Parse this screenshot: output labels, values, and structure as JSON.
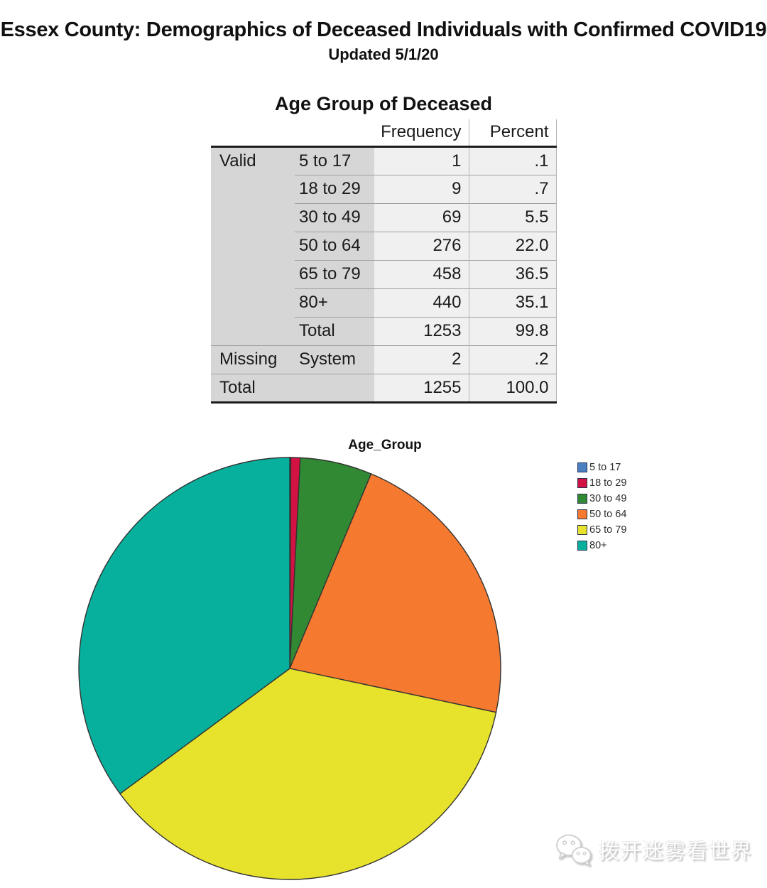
{
  "header": {
    "title": "Essex County: Demographics of Deceased Individuals with Confirmed COVID19",
    "subtitle": "Updated 5/1/20"
  },
  "chart_data": [
    {
      "type": "table",
      "title": "Age Group of Deceased",
      "columns": [
        "Frequency",
        "Percent"
      ],
      "rows": [
        {
          "section": "Valid",
          "label": "5 to 17",
          "frequency": "1",
          "percent": ".1"
        },
        {
          "section": "",
          "label": "18 to 29",
          "frequency": "9",
          "percent": ".7"
        },
        {
          "section": "",
          "label": "30 to 49",
          "frequency": "69",
          "percent": "5.5"
        },
        {
          "section": "",
          "label": "50 to 64",
          "frequency": "276",
          "percent": "22.0"
        },
        {
          "section": "",
          "label": "65 to 79",
          "frequency": "458",
          "percent": "36.5"
        },
        {
          "section": "",
          "label": "80+",
          "frequency": "440",
          "percent": "35.1"
        },
        {
          "section": "",
          "label": "Total",
          "frequency": "1253",
          "percent": "99.8"
        },
        {
          "section": "Missing",
          "label": "System",
          "frequency": "2",
          "percent": ".2"
        },
        {
          "section": "Total",
          "label": "",
          "frequency": "1255",
          "percent": "100.0"
        }
      ]
    },
    {
      "type": "pie",
      "title": "Age_Group",
      "categories": [
        "5 to 17",
        "18 to 29",
        "30 to 49",
        "50 to 64",
        "65 to 79",
        "80+"
      ],
      "values": [
        1,
        9,
        69,
        276,
        458,
        440
      ],
      "percents": [
        0.1,
        0.7,
        5.5,
        22.0,
        36.5,
        35.1
      ],
      "colors": [
        "#4a7fc1",
        "#d21243",
        "#318a33",
        "#f5792f",
        "#e7e22b",
        "#06b09c"
      ],
      "slice_border_color": "#333333",
      "start_angle_deg": 0,
      "direction": "clockwise",
      "legend_position": "right",
      "grid": false
    }
  ],
  "watermark": {
    "text": "拨开迷雾看世界",
    "icon": "wechat-bubbles-icon"
  }
}
